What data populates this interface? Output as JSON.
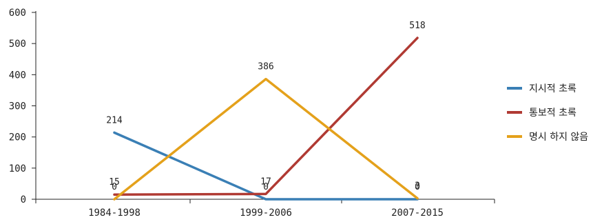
{
  "chart_data": {
    "type": "line",
    "categories": [
      "1984-1998",
      "1999-2006",
      "2007-2015"
    ],
    "series": [
      {
        "name": "지시적 초록",
        "color": "#3a7fb5",
        "values": [
          214,
          0,
          0
        ]
      },
      {
        "name": "통보적 초록",
        "color": "#b03a33",
        "values": [
          15,
          17,
          518
        ]
      },
      {
        "name": "명시 하지 않음",
        "color": "#e4a11b",
        "values": [
          0,
          386,
          3
        ]
      }
    ],
    "ylim": [
      0,
      600
    ],
    "yticks": [
      0,
      100,
      200,
      300,
      400,
      500,
      600
    ],
    "grid": false,
    "legend_position": "right",
    "data_labels": [
      {
        "series": 0,
        "index": 0,
        "text": "214"
      },
      {
        "series": 0,
        "index": 1,
        "text": "0"
      },
      {
        "series": 0,
        "index": 2,
        "text": "0"
      },
      {
        "series": 1,
        "index": 0,
        "text": "15"
      },
      {
        "series": 1,
        "index": 1,
        "text": "17"
      },
      {
        "series": 1,
        "index": 2,
        "text": "518"
      },
      {
        "series": 2,
        "index": 0,
        "text": "0"
      },
      {
        "series": 2,
        "index": 1,
        "text": "386"
      },
      {
        "series": 2,
        "index": 2,
        "text": "3"
      }
    ]
  }
}
